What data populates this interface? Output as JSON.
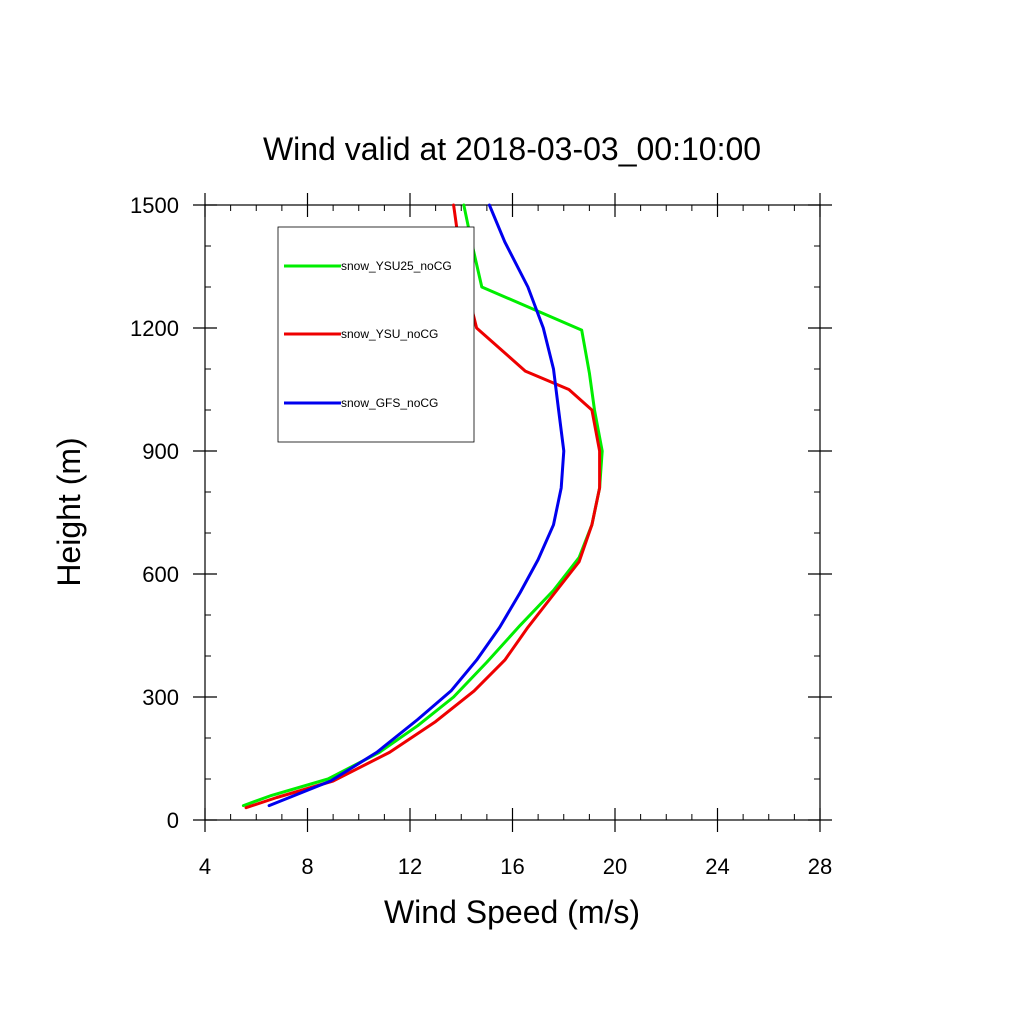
{
  "chart_data": {
    "type": "line",
    "title": "Wind valid at 2018-03-03_00:10:00",
    "xlabel": "Wind Speed (m/s)",
    "ylabel": "Height (m)",
    "xlim": [
      4,
      28
    ],
    "ylim": [
      0,
      1500
    ],
    "xticks": [
      4,
      8,
      12,
      16,
      20,
      24,
      28
    ],
    "yticks": [
      0,
      300,
      600,
      900,
      1200,
      1500
    ],
    "xticks_minor_step": 1,
    "yticks_minor_step": 100,
    "grid": false,
    "legend_position": "top-left",
    "series": [
      {
        "name": "snow_YSU25_noCG",
        "color": "#00ee00",
        "x": [
          5.5,
          6.6,
          8.8,
          10.8,
          12.3,
          13.7,
          15.0,
          16.3,
          17.6,
          18.6,
          19.1,
          19.4,
          19.5,
          19.2,
          19.0,
          18.7,
          14.8,
          14.4,
          14.1
        ],
        "y": [
          35,
          60,
          100,
          165,
          230,
          300,
          385,
          475,
          560,
          640,
          720,
          810,
          900,
          1000,
          1090,
          1195,
          1300,
          1410,
          1500
        ]
      },
      {
        "name": "snow_YSU_noCG",
        "color": "#ee0000",
        "x": [
          5.6,
          6.8,
          9.0,
          11.2,
          13.0,
          14.5,
          15.7,
          16.6,
          17.6,
          18.6,
          19.1,
          19.4,
          19.4,
          19.1,
          18.2,
          16.5,
          14.6,
          14.2,
          13.9,
          13.7
        ],
        "y": [
          30,
          55,
          95,
          165,
          240,
          315,
          390,
          470,
          550,
          630,
          720,
          810,
          900,
          1000,
          1050,
          1095,
          1200,
          1300,
          1410,
          1500
        ]
      },
      {
        "name": "snow_GFS_noCG",
        "color": "#0000ee",
        "x": [
          6.5,
          7.5,
          8.9,
          10.7,
          12.3,
          13.6,
          14.6,
          15.5,
          16.3,
          17.0,
          17.6,
          17.9,
          18.0,
          17.8,
          17.6,
          17.2,
          16.6,
          15.7,
          15.1
        ],
        "y": [
          35,
          60,
          95,
          165,
          245,
          315,
          390,
          470,
          555,
          635,
          720,
          810,
          900,
          1000,
          1100,
          1200,
          1300,
          1410,
          1500
        ]
      }
    ]
  }
}
